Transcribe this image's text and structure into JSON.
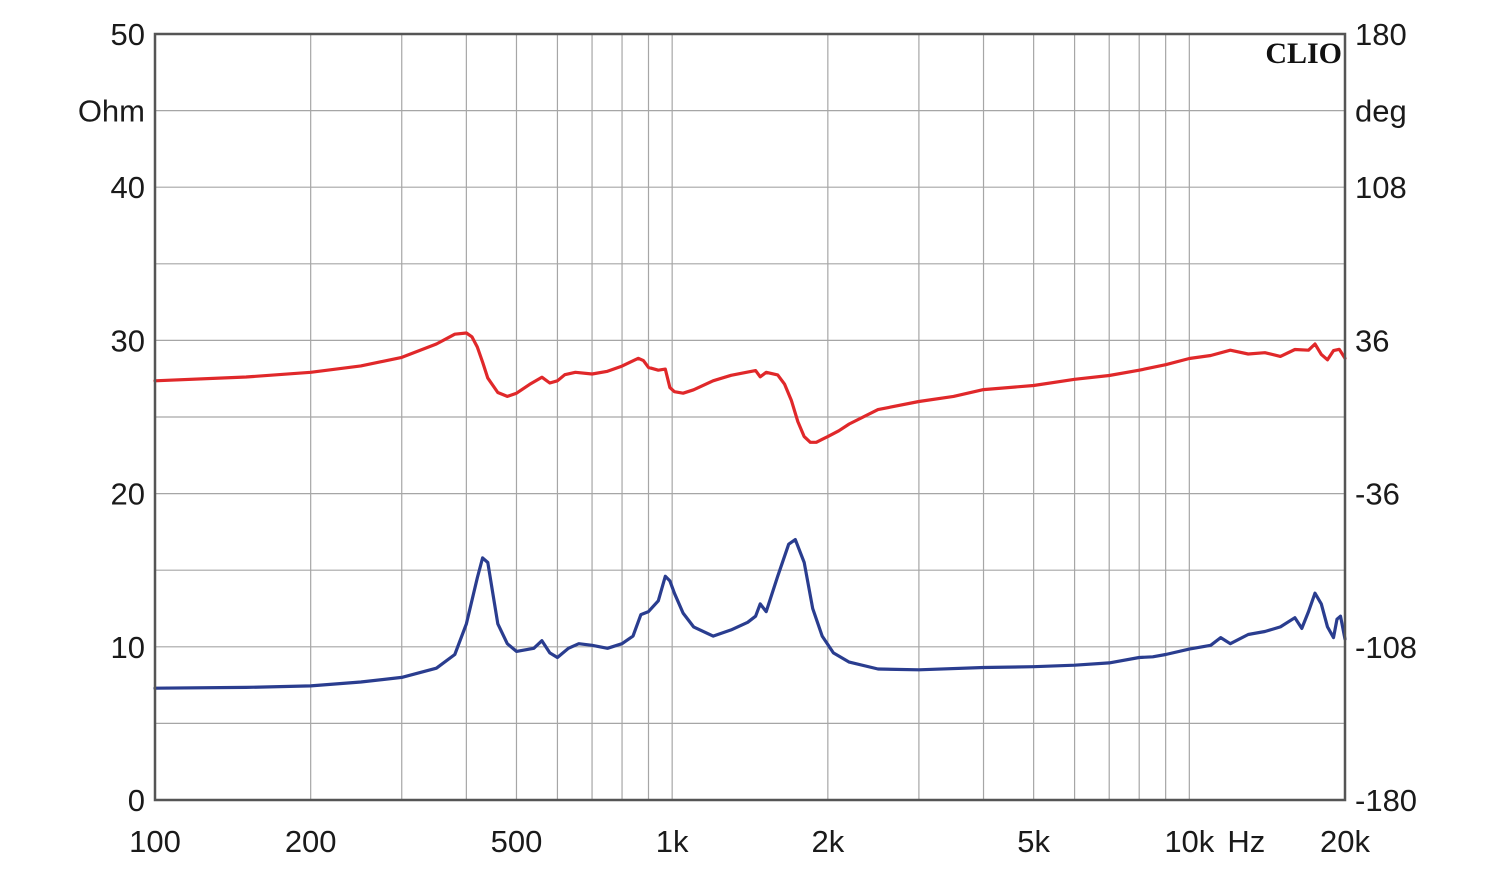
{
  "chart_data": {
    "type": "line",
    "brand": "CLIO",
    "x_scale": "log",
    "xlim": [
      100,
      20000
    ],
    "ylim_left": [
      0,
      50
    ],
    "ylim_right": [
      -180,
      180
    ],
    "left_unit": "Ohm",
    "right_unit": "deg",
    "x_unit": "Hz",
    "grid": true,
    "colors": {
      "impedance": "#2a3d8f",
      "phase": "#e0282a",
      "grid": "#a6a6a6",
      "frame": "#555555"
    },
    "x_ticks": [
      {
        "value": 100,
        "label": "100"
      },
      {
        "value": 200,
        "label": "200"
      },
      {
        "value": 500,
        "label": "500"
      },
      {
        "value": 1000,
        "label": "1k"
      },
      {
        "value": 2000,
        "label": "2k"
      },
      {
        "value": 5000,
        "label": "5k"
      },
      {
        "value": 10000,
        "label": "10k"
      },
      {
        "value": 20000,
        "label": "20k"
      }
    ],
    "left_ticks": [
      {
        "value": 0,
        "label": "0"
      },
      {
        "value": 10,
        "label": "10"
      },
      {
        "value": 20,
        "label": "20"
      },
      {
        "value": 30,
        "label": "30"
      },
      {
        "value": 40,
        "label": "40"
      },
      {
        "value": 50,
        "label": "50"
      }
    ],
    "right_ticks": [
      {
        "value": -180,
        "label": "-180"
      },
      {
        "value": -108,
        "label": "-108"
      },
      {
        "value": -36,
        "label": "-36"
      },
      {
        "value": 36,
        "label": "36"
      },
      {
        "value": 108,
        "label": "108"
      },
      {
        "value": 180,
        "label": "180"
      }
    ],
    "series": [
      {
        "key": "impedance",
        "axis": "left",
        "x": [
          100,
          150,
          200,
          250,
          300,
          350,
          380,
          400,
          420,
          430,
          440,
          450,
          460,
          480,
          500,
          540,
          560,
          580,
          600,
          630,
          660,
          700,
          750,
          800,
          840,
          870,
          900,
          940,
          970,
          990,
          1010,
          1050,
          1100,
          1200,
          1300,
          1400,
          1450,
          1480,
          1520,
          1600,
          1680,
          1730,
          1800,
          1870,
          1950,
          2050,
          2200,
          2500,
          3000,
          4000,
          5000,
          6000,
          7000,
          8000,
          8500,
          9000,
          10000,
          11000,
          11500,
          12000,
          13000,
          14000,
          15000,
          16000,
          16500,
          17000,
          17500,
          18000,
          18500,
          19000,
          19300,
          19600,
          20000
        ],
        "y": [
          7.3,
          7.35,
          7.45,
          7.7,
          8.0,
          8.6,
          9.5,
          11.5,
          14.5,
          15.8,
          15.5,
          13.5,
          11.5,
          10.2,
          9.7,
          9.9,
          10.4,
          9.6,
          9.3,
          9.9,
          10.2,
          10.1,
          9.9,
          10.2,
          10.7,
          12.1,
          12.3,
          13.0,
          14.6,
          14.3,
          13.5,
          12.2,
          11.3,
          10.7,
          11.1,
          11.6,
          12.0,
          12.8,
          12.3,
          14.6,
          16.7,
          17.0,
          15.5,
          12.5,
          10.7,
          9.6,
          9.0,
          8.55,
          8.5,
          8.65,
          8.7,
          8.8,
          8.95,
          9.3,
          9.35,
          9.5,
          9.85,
          10.1,
          10.6,
          10.2,
          10.8,
          11.0,
          11.3,
          11.9,
          11.2,
          12.3,
          13.5,
          12.8,
          11.3,
          10.6,
          11.8,
          12.0,
          10.5
        ]
      },
      {
        "key": "phase",
        "axis": "right",
        "x": [
          100,
          150,
          200,
          250,
          300,
          350,
          380,
          400,
          410,
          420,
          430,
          440,
          460,
          480,
          500,
          530,
          560,
          580,
          600,
          620,
          650,
          700,
          750,
          800,
          840,
          860,
          880,
          900,
          940,
          970,
          990,
          1010,
          1050,
          1100,
          1200,
          1300,
          1400,
          1450,
          1480,
          1520,
          1600,
          1650,
          1700,
          1750,
          1800,
          1850,
          1900,
          1950,
          2000,
          2100,
          2200,
          2500,
          3000,
          3500,
          4000,
          5000,
          6000,
          7000,
          8000,
          9000,
          10000,
          11000,
          12000,
          13000,
          14000,
          15000,
          16000,
          17000,
          17500,
          18000,
          18500,
          19000,
          19500,
          20000
        ],
        "y": [
          17.0,
          18.8,
          21.0,
          24.0,
          28.0,
          34.3,
          38.9,
          39.5,
          37.7,
          32.9,
          25.8,
          18.3,
          11.5,
          9.7,
          11.2,
          15.3,
          18.7,
          16.0,
          17.0,
          19.9,
          21.0,
          20.2,
          21.5,
          23.9,
          26.4,
          27.6,
          26.5,
          23.3,
          22.0,
          22.5,
          13.8,
          11.9,
          11.2,
          12.8,
          17.0,
          19.6,
          21.1,
          21.8,
          18.9,
          21.0,
          19.8,
          15.4,
          7.9,
          -2.1,
          -9.2,
          -11.9,
          -11.9,
          -10.5,
          -9.2,
          -6.5,
          -3.3,
          3.5,
          7.3,
          9.7,
          12.9,
          14.8,
          17.7,
          19.5,
          22.0,
          24.6,
          27.5,
          28.9,
          31.4,
          29.6,
          30.2,
          28.5,
          31.7,
          31.4,
          34.3,
          29.4,
          26.9,
          31.2,
          31.8,
          27.6
        ]
      }
    ]
  }
}
